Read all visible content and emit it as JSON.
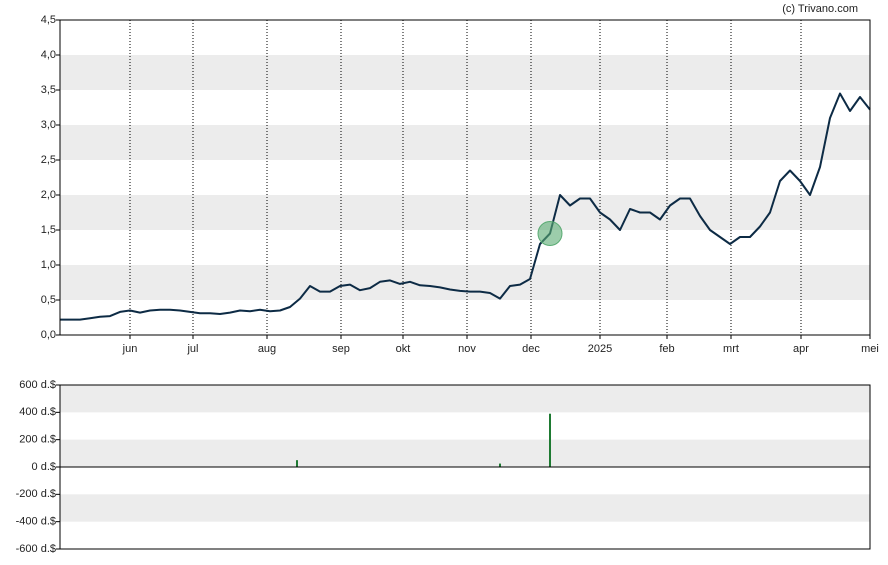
{
  "chart_data": [
    {
      "type": "line",
      "source": "(c) Trivano.com",
      "grid": true,
      "color": "#0d2b45",
      "xlim": [
        0,
        81
      ],
      "xticks": [
        {
          "value": 7,
          "label": "jun"
        },
        {
          "value": 13.3,
          "label": "jul"
        },
        {
          "value": 20.7,
          "label": "aug"
        },
        {
          "value": 28.1,
          "label": "sep"
        },
        {
          "value": 34.3,
          "label": "okt"
        },
        {
          "value": 40.7,
          "label": "nov"
        },
        {
          "value": 47.1,
          "label": "dec"
        },
        {
          "value": 54,
          "label": "2025"
        },
        {
          "value": 60.7,
          "label": "feb"
        },
        {
          "value": 67.1,
          "label": "mrt"
        },
        {
          "value": 74.1,
          "label": "apr"
        },
        {
          "value": 81,
          "label": "mei"
        }
      ],
      "ylim": [
        0,
        4.5
      ],
      "yticks": [
        {
          "value": 0,
          "label": "0,0"
        },
        {
          "value": 0.5,
          "label": "0,5"
        },
        {
          "value": 1,
          "label": "1,0"
        },
        {
          "value": 1.5,
          "label": "1,5"
        },
        {
          "value": 2,
          "label": "2,0"
        },
        {
          "value": 2.5,
          "label": "2,5"
        },
        {
          "value": 3,
          "label": "3,0"
        },
        {
          "value": 3.5,
          "label": "3,5"
        },
        {
          "value": 4,
          "label": "4,0"
        },
        {
          "value": 4.5,
          "label": "4,5"
        }
      ],
      "values": [
        0.22,
        0.22,
        0.22,
        0.24,
        0.26,
        0.27,
        0.33,
        0.35,
        0.32,
        0.35,
        0.36,
        0.36,
        0.35,
        0.33,
        0.31,
        0.31,
        0.3,
        0.32,
        0.35,
        0.34,
        0.36,
        0.34,
        0.35,
        0.4,
        0.52,
        0.7,
        0.62,
        0.62,
        0.7,
        0.72,
        0.64,
        0.67,
        0.76,
        0.78,
        0.73,
        0.76,
        0.71,
        0.7,
        0.68,
        0.65,
        0.63,
        0.62,
        0.62,
        0.6,
        0.52,
        0.7,
        0.72,
        0.8,
        1.3,
        1.45,
        2.0,
        1.85,
        1.95,
        1.95,
        1.75,
        1.65,
        1.5,
        1.8,
        1.75,
        1.75,
        1.65,
        1.85,
        1.95,
        1.95,
        1.7,
        1.5,
        1.4,
        1.3,
        1.4,
        1.4,
        1.55,
        1.75,
        2.2,
        2.35,
        2.2,
        2.0,
        2.4,
        3.1,
        3.45,
        3.2,
        3.4,
        3.22
      ],
      "highlight_index": 49,
      "highlight_color": "#5aab73"
    },
    {
      "type": "bar",
      "grid": true,
      "color": "#1e7a32",
      "xlim": [
        0,
        81
      ],
      "ylim": [
        -600,
        600
      ],
      "yticks": [
        {
          "value": -600,
          "label": "-600 d.$"
        },
        {
          "value": -400,
          "label": "-400 d.$"
        },
        {
          "value": -200,
          "label": "-200 d.$"
        },
        {
          "value": 0,
          "label": "0 d.$"
        },
        {
          "value": 200,
          "label": "200 d.$"
        },
        {
          "value": 400,
          "label": "400 d.$"
        },
        {
          "value": 600,
          "label": "600 d.$"
        }
      ],
      "x": [
        23.7,
        44,
        49
      ],
      "values": [
        50,
        25,
        390
      ]
    }
  ]
}
